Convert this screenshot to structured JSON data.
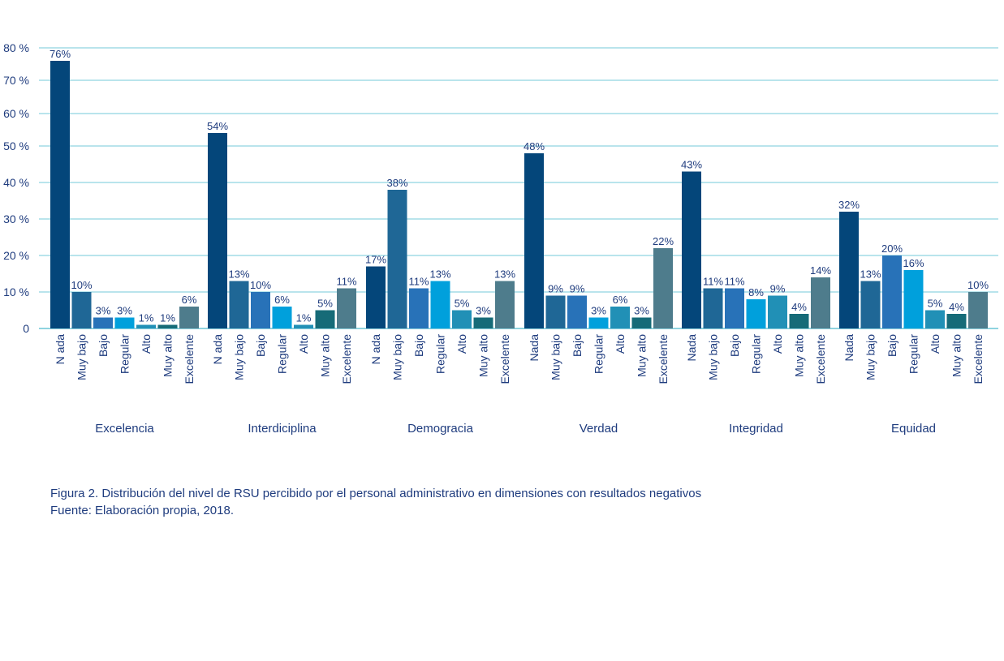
{
  "chart_data": {
    "type": "bar",
    "title": "",
    "xlabel": "",
    "ylabel": "",
    "ylim": [
      0,
      80
    ],
    "yticks": [
      "0",
      "10 %",
      "20 %",
      "30 %",
      "40 %",
      "50 %",
      "60 %",
      "70 %",
      "80 %"
    ],
    "grid": true,
    "levels": [
      "Nada",
      "Muy bajo",
      "Bajo",
      "Regular",
      "Alto",
      "Muy alto",
      "Excelente"
    ],
    "groups": [
      {
        "name": "Excelencia",
        "tick_labels": [
          "N ada",
          "Muy bajo",
          "Bajo",
          "Regular",
          "Alto",
          "Muy alto",
          "Excelente"
        ],
        "values": [
          76,
          10,
          3,
          3,
          1,
          1,
          6
        ]
      },
      {
        "name": "Interdiciplina",
        "tick_labels": [
          "N ada",
          "Muy bajo",
          "Bajo",
          "Regular",
          "Alto",
          "Muy alto",
          "Excelente"
        ],
        "values": [
          54,
          13,
          10,
          6,
          1,
          5,
          11
        ]
      },
      {
        "name": "Demogracia",
        "tick_labels": [
          "N ada",
          "Muy bajo",
          "Bajo",
          "Regular",
          "Alto",
          "Muy alto",
          "Excelente"
        ],
        "values": [
          17,
          38,
          11,
          13,
          5,
          3,
          13
        ]
      },
      {
        "name": "Verdad",
        "tick_labels": [
          "Nada",
          "Muy bajo",
          "Bajo",
          "Regular",
          "Alto",
          "Muy alto",
          "Excelente"
        ],
        "values": [
          48,
          9,
          9,
          3,
          6,
          3,
          22
        ]
      },
      {
        "name": "Integridad",
        "tick_labels": [
          "Nada",
          "Muy bajo",
          "Bajo",
          "Regular",
          "Alto",
          "Muy alto",
          "Excelente"
        ],
        "values": [
          43,
          11,
          11,
          8,
          9,
          4,
          14
        ]
      },
      {
        "name": "Equidad",
        "tick_labels": [
          "Nada",
          "Muy bajo",
          "Bajo",
          "Regular",
          "Alto",
          "Muy alto",
          "Excelente"
        ],
        "values": [
          32,
          13,
          20,
          16,
          5,
          4,
          10
        ]
      }
    ],
    "value_suffix": "%",
    "colors": [
      "#04467a",
      "#1f6796",
      "#2872b8",
      "#00a0dc",
      "#2190b6",
      "#166b78",
      "#4e7c8c"
    ],
    "grid_color": "#8fd3e0"
  },
  "caption": {
    "line1": "Figura 2. Distribución del nivel de RSU percibido por el personal administrativo en dimensiones con resultados negativos",
    "line2": "Fuente: Elaboración propia, 2018."
  }
}
